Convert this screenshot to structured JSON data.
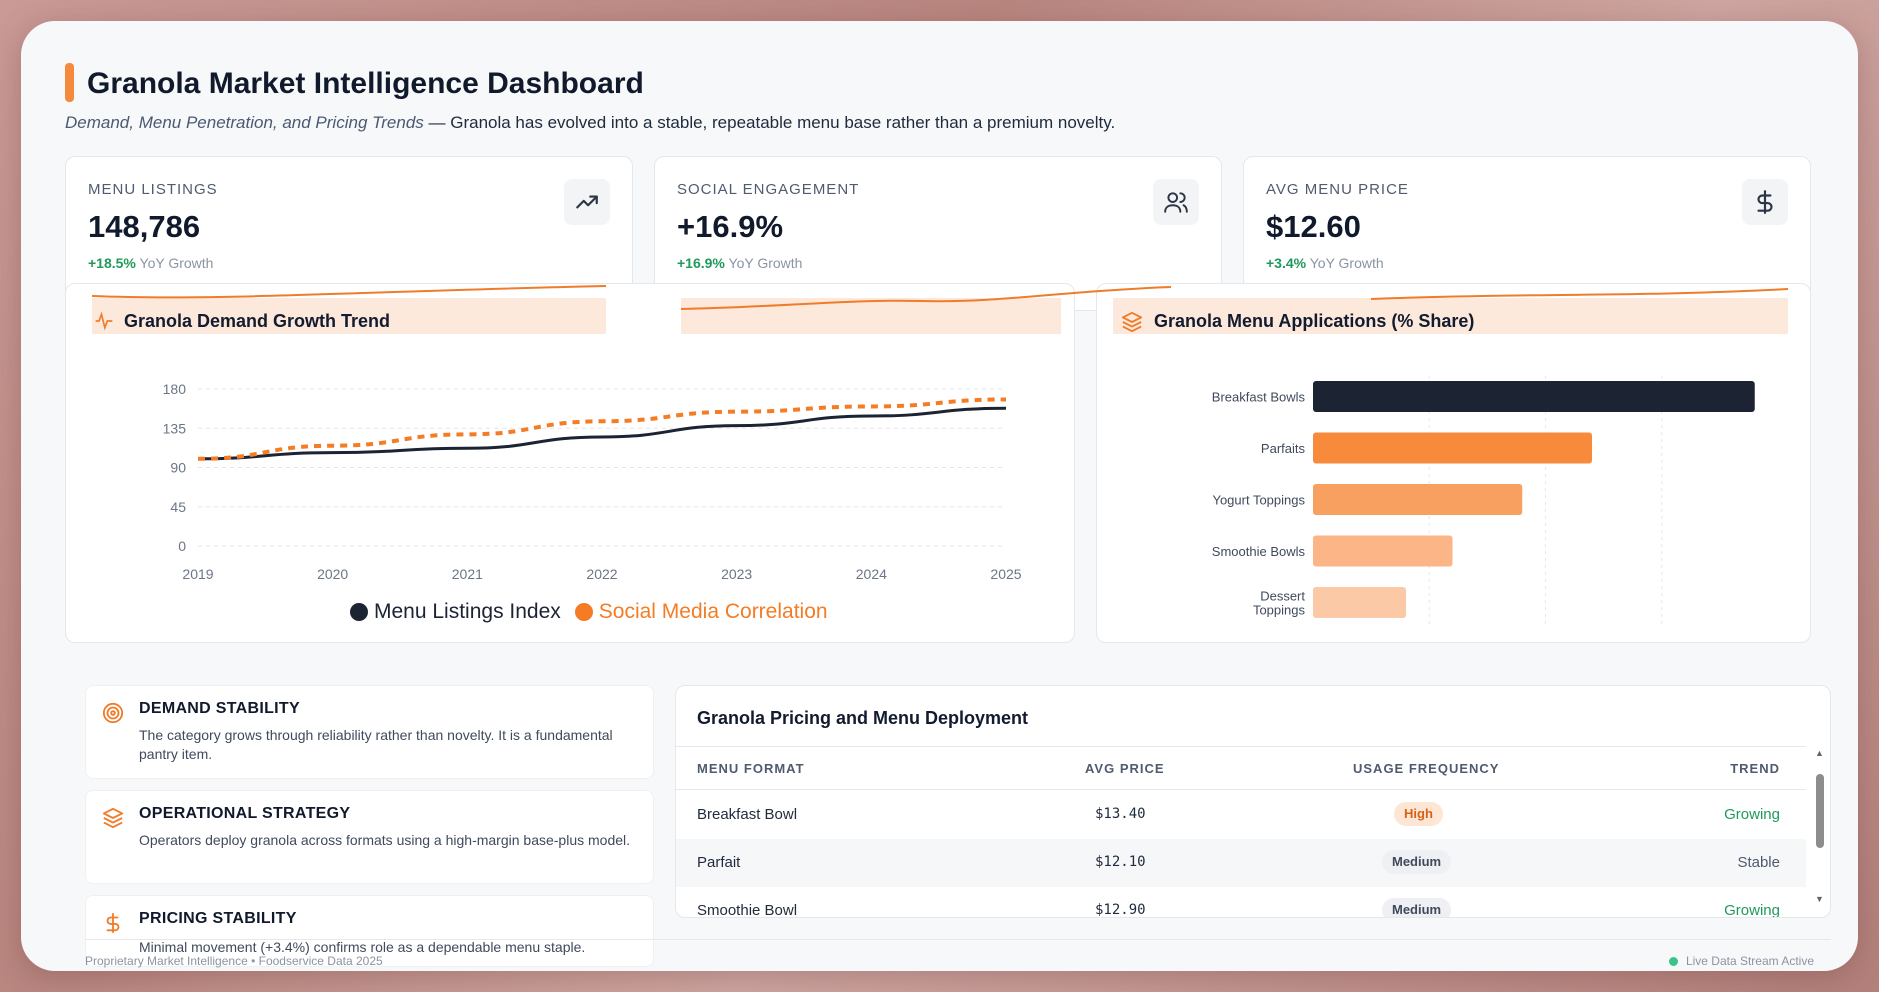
{
  "header": {
    "title": "Granola Market Intelligence Dashboard",
    "subtitle_em": "Demand, Menu Penetration, and Pricing Trends",
    "subtitle_rest": " — Granola has evolved into a stable, repeatable menu base rather than a premium novelty."
  },
  "kpis": [
    {
      "label": "MENU LISTINGS",
      "value": "148,786",
      "growth": "+18.5%",
      "growth_suffix": " YoY Growth",
      "icon": "trending-up-icon"
    },
    {
      "label": "SOCIAL ENGAGEMENT",
      "value": "+16.9%",
      "growth": "+16.9%",
      "growth_suffix": " YoY Growth",
      "icon": "users-icon"
    },
    {
      "label": "AVG MENU PRICE",
      "value": "$12.60",
      "growth": "+3.4%",
      "growth_suffix": " YoY Growth",
      "icon": "dollar-icon"
    }
  ],
  "charts": {
    "trend_title": "Granola Demand Growth Trend",
    "applications_title": "Granola Menu Applications (% Share)"
  },
  "chart_data": [
    {
      "type": "line",
      "title": "Granola Demand Growth Trend",
      "x": [
        "2019",
        "2020",
        "2021",
        "2022",
        "2023",
        "2024",
        "2025"
      ],
      "y_ticks": [
        0,
        45,
        90,
        135,
        180
      ],
      "ylim": [
        0,
        180
      ],
      "grid": true,
      "legend_placement": "bottom",
      "series": [
        {
          "name": "Menu Listings Index",
          "values": [
            100,
            107,
            112,
            125,
            138,
            149,
            158
          ],
          "color": "#1c2333",
          "style": "solid"
        },
        {
          "name": "Social Media Correlation",
          "values": [
            100,
            115,
            128,
            143,
            154,
            160,
            168
          ],
          "color": "#f47c25",
          "style": "dashed"
        }
      ]
    },
    {
      "type": "bar",
      "orientation": "horizontal",
      "title": "Granola Menu Applications (% Share)",
      "categories": [
        "Breakfast Bowls",
        "Parfaits",
        "Yogurt Toppings",
        "Smoothie Bowls",
        "Dessert Toppings"
      ],
      "values": [
        38,
        24,
        18,
        12,
        8
      ],
      "xlim": [
        0,
        40
      ],
      "colors": [
        "#1c2333",
        "#f78a3b",
        "#f8a05f",
        "#fbb586",
        "#fcc9a6"
      ],
      "grid": true
    }
  ],
  "insights": [
    {
      "title": "DEMAND STABILITY",
      "text": "The category grows through reliability rather than novelty. It is a fundamental pantry item.",
      "icon": "target-icon"
    },
    {
      "title": "OPERATIONAL STRATEGY",
      "text": "Operators deploy granola across formats using a high-margin base-plus model.",
      "icon": "layers-icon"
    },
    {
      "title": "PRICING STABILITY",
      "text": "Minimal movement (+3.4%) confirms role as a dependable menu staple.",
      "icon": "dollar-icon"
    }
  ],
  "table": {
    "title": "Granola Pricing and Menu Deployment",
    "headers": [
      "MENU FORMAT",
      "AVG PRICE",
      "USAGE FREQUENCY",
      "TREND"
    ],
    "rows": [
      {
        "format": "Breakfast Bowl",
        "price": "$13.40",
        "usage": "High",
        "trend": "Growing"
      },
      {
        "format": "Parfait",
        "price": "$12.10",
        "usage": "Medium",
        "trend": "Stable"
      },
      {
        "format": "Smoothie Bowl",
        "price": "$12.90",
        "usage": "Medium",
        "trend": "Growing"
      }
    ]
  },
  "footer": {
    "left": "Proprietary Market Intelligence • Foodservice Data 2025",
    "right": "Live Data Stream Active"
  }
}
